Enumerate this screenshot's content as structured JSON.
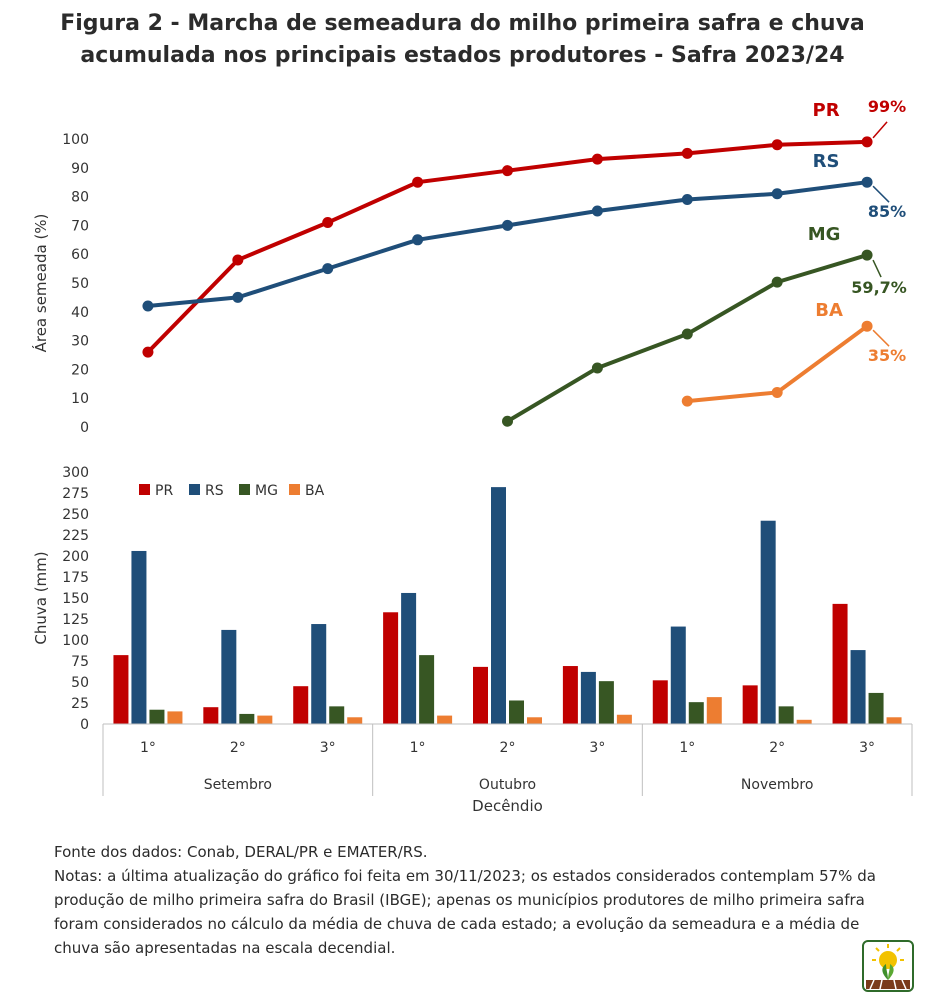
{
  "title_lines": [
    "Figura 2 - Marcha de semeadura do milho primeira safra e chuva",
    "acumulada nos principais estados produtores - Safra 2023/24"
  ],
  "colors": {
    "PR": "#C00000",
    "RS": "#1F4E79",
    "MG": "#375623",
    "BA": "#ED7D31"
  },
  "chart_data": [
    {
      "type": "line",
      "ylabel": "Área semeada (%)",
      "ylim": [
        0,
        100
      ],
      "yticks": [
        0,
        10,
        20,
        30,
        40,
        50,
        60,
        70,
        80,
        90,
        100
      ],
      "grid": false,
      "x": [
        "Setembro 1°",
        "Setembro 2°",
        "Setembro 3°",
        "Outubro 1°",
        "Outubro 2°",
        "Outubro 3°",
        "Novembro 1°",
        "Novembro 2°",
        "Novembro 3°"
      ],
      "series": [
        {
          "name": "PR",
          "values": [
            26,
            58,
            71,
            85,
            89,
            93,
            95,
            98,
            99
          ],
          "end_label": "99%"
        },
        {
          "name": "RS",
          "values": [
            42,
            45,
            55,
            65,
            70,
            75,
            79,
            81,
            85
          ],
          "end_label": "85%"
        },
        {
          "name": "MG",
          "values": [
            null,
            null,
            null,
            null,
            2,
            20.5,
            32.3,
            50.3,
            59.7
          ],
          "end_label": "59,7%"
        },
        {
          "name": "BA",
          "values": [
            null,
            null,
            null,
            null,
            null,
            null,
            9,
            12,
            35
          ],
          "end_label": "35%"
        }
      ]
    },
    {
      "type": "bar",
      "ylabel": "Chuva (mm)",
      "xlabel": "Decêndio",
      "ylim": [
        0,
        300
      ],
      "yticks": [
        0,
        25,
        50,
        75,
        100,
        125,
        150,
        175,
        200,
        225,
        250,
        275,
        300
      ],
      "grid": false,
      "legend_position": "top-left",
      "categories": [
        "1°",
        "2°",
        "3°",
        "1°",
        "2°",
        "3°",
        "1°",
        "2°",
        "3°"
      ],
      "groups": [
        "Setembro",
        "Outubro",
        "Novembro"
      ],
      "series": [
        {
          "name": "PR",
          "values": [
            82,
            20,
            45,
            133,
            68,
            69,
            52,
            46,
            143
          ]
        },
        {
          "name": "RS",
          "values": [
            206,
            112,
            119,
            156,
            282,
            62,
            116,
            242,
            88
          ]
        },
        {
          "name": "MG",
          "values": [
            17,
            12,
            21,
            82,
            28,
            51,
            26,
            21,
            37
          ]
        },
        {
          "name": "BA",
          "values": [
            15,
            10,
            8,
            10,
            8,
            11,
            32,
            5,
            8
          ]
        }
      ]
    }
  ],
  "notes": {
    "source": "Fonte dos dados: Conab, DERAL/PR e EMATER/RS.",
    "text": "Notas: a última atualização do gráfico foi feita em 30/11/2023; os estados considerados contemplam 57% da produção de milho primeira safra do Brasil (IBGE); apenas os municípios produtores de milho primeira safra foram considerados no cálculo da média de chuva de cada estado; a evolução da semeadura e a média de chuva são apresentadas na escala decendial."
  },
  "logo_icon": "sun-plant-logo-icon"
}
